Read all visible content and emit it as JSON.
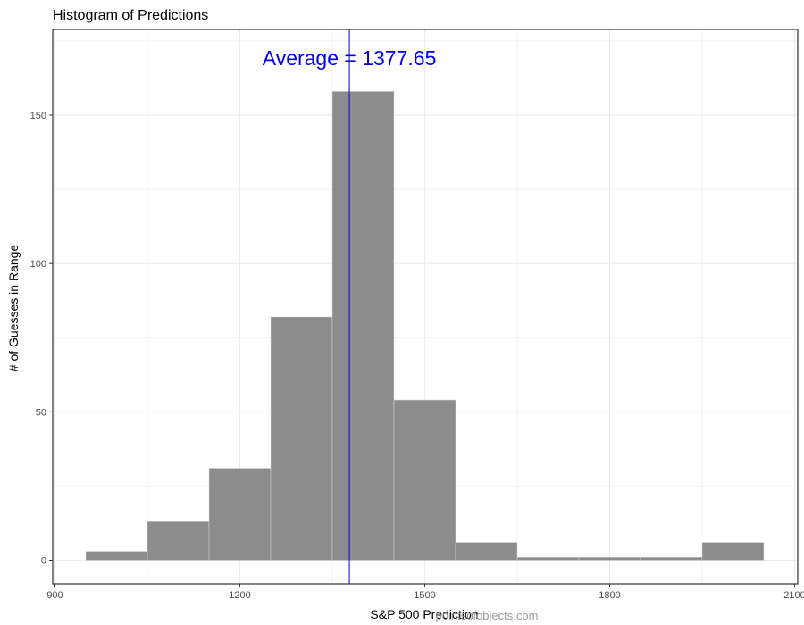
{
  "chart_data": {
    "type": "bar",
    "subtype": "histogram",
    "title": "Histogram of Predictions",
    "xlabel": "S&P 500 Prediction",
    "ylabel": "# of Guesses in Range",
    "xlim": [
      900,
      2100
    ],
    "ylim": [
      0,
      175
    ],
    "x_ticks": [
      900,
      1200,
      1500,
      1800,
      2100
    ],
    "y_ticks": [
      0,
      50,
      100,
      150
    ],
    "x_minor_grid": [
      1050,
      1350,
      1650,
      1950
    ],
    "y_minor_grid": [
      25,
      75,
      125,
      175
    ],
    "bin_width": 100,
    "bins": [
      {
        "start": 950,
        "end": 1050,
        "count": 3
      },
      {
        "start": 1050,
        "end": 1150,
        "count": 13
      },
      {
        "start": 1150,
        "end": 1250,
        "count": 31
      },
      {
        "start": 1250,
        "end": 1350,
        "count": 82
      },
      {
        "start": 1350,
        "end": 1450,
        "count": 158
      },
      {
        "start": 1450,
        "end": 1550,
        "count": 54
      },
      {
        "start": 1550,
        "end": 1650,
        "count": 6
      },
      {
        "start": 1650,
        "end": 1750,
        "count": 1
      },
      {
        "start": 1750,
        "end": 1850,
        "count": 1
      },
      {
        "start": 1850,
        "end": 1950,
        "count": 1
      },
      {
        "start": 1950,
        "end": 2050,
        "count": 6
      }
    ],
    "average": {
      "value": 1377.65,
      "label": "Average = 1377.65"
    },
    "grid": true,
    "legend": "none",
    "colors": {
      "bar_fill": "#8c8c8c",
      "bar_stroke": "#d9d9d9",
      "average_line": "#0000cc",
      "annotation_text": "#0000ee",
      "grid": "#ebebeb",
      "panel_border": "#333333"
    }
  },
  "watermark": "pointsofobjects.com"
}
